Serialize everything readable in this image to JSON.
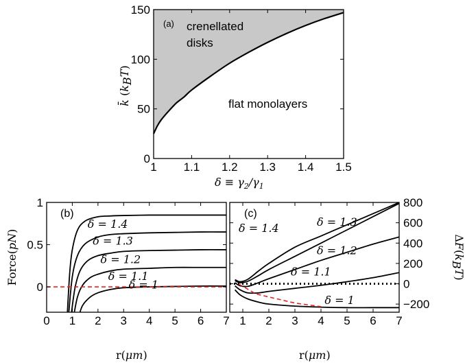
{
  "chart_data": [
    {
      "id": "a",
      "type": "line",
      "panel_label": "(a)",
      "xlabel": "δ ≡ γ₂/γ₁",
      "ylabel": "k̄ (k_B T)",
      "xlim": [
        1,
        1.5
      ],
      "ylim": [
        0,
        150
      ],
      "xticks": [
        "1",
        "1.1",
        "1.2",
        "1.3",
        "1.4",
        "1.5"
      ],
      "yticks": [
        "0",
        "50",
        "100",
        "150"
      ],
      "grid": false,
      "series": [
        {
          "x": [
            1.0,
            1.01,
            1.02,
            1.04,
            1.06,
            1.08,
            1.1,
            1.15,
            1.2,
            1.25,
            1.3,
            1.35,
            1.4,
            1.45,
            1.5
          ],
          "y": [
            25,
            33,
            39,
            48,
            56,
            62,
            69,
            83,
            96,
            107,
            117,
            126,
            134,
            141,
            147
          ]
        }
      ],
      "shaded_region": "above curve",
      "annotations": [
        {
          "text": "crenellated",
          "x": 1.06,
          "y": 127
        },
        {
          "text": "disks",
          "x": 1.06,
          "y": 111
        },
        {
          "text": "flat monolayers",
          "x": 1.24,
          "y": 53
        }
      ]
    },
    {
      "id": "b",
      "type": "line",
      "panel_label": "(b)",
      "xlabel": "r(μm)",
      "ylabel": "Force(pN)",
      "xlim": [
        0,
        7
      ],
      "ylim": [
        -0.3,
        1
      ],
      "xticks": [
        "0",
        "1",
        "2",
        "3",
        "4",
        "5",
        "6",
        "7"
      ],
      "yticks": [
        "0",
        "0.5",
        "1"
      ],
      "grid": false,
      "series": [
        {
          "label": "δ = 1.4",
          "x": [
            0.8,
            0.9,
            1.0,
            1.2,
            1.5,
            2.0,
            2.5,
            3.0,
            4.0,
            5.0,
            6.0,
            7.0
          ],
          "y": [
            -0.35,
            0.17,
            0.44,
            0.67,
            0.78,
            0.83,
            0.84,
            0.845,
            0.85,
            0.85,
            0.85,
            0.85
          ]
        },
        {
          "label": "δ = 1.3",
          "x": [
            0.85,
            1.0,
            1.2,
            1.5,
            2.0,
            2.5,
            3.0,
            4.0,
            5.0,
            6.0,
            7.0
          ],
          "y": [
            -0.35,
            0.12,
            0.37,
            0.51,
            0.59,
            0.62,
            0.63,
            0.64,
            0.645,
            0.65,
            0.65
          ]
        },
        {
          "label": "δ = 1.2",
          "x": [
            0.95,
            1.1,
            1.3,
            1.6,
            2.0,
            2.5,
            3.0,
            4.0,
            5.0,
            6.0,
            7.0
          ],
          "y": [
            -0.35,
            -0.02,
            0.19,
            0.31,
            0.37,
            0.4,
            0.42,
            0.43,
            0.435,
            0.44,
            0.44
          ]
        },
        {
          "label": "δ = 1.1",
          "x": [
            1.05,
            1.2,
            1.4,
            1.7,
            2.0,
            2.5,
            3.0,
            4.0,
            5.0,
            6.0,
            7.0
          ],
          "y": [
            -0.35,
            -0.12,
            0.02,
            0.11,
            0.15,
            0.19,
            0.21,
            0.22,
            0.23,
            0.23,
            0.23
          ]
        },
        {
          "label": "δ = 1",
          "x": [
            1.25,
            1.4,
            1.7,
            2.0,
            2.5,
            3.0,
            4.0,
            5.0,
            6.0,
            7.0
          ],
          "y": [
            -0.35,
            -0.22,
            -0.12,
            -0.07,
            -0.03,
            -0.01,
            0.0,
            0.005,
            0.01,
            0.01
          ]
        }
      ],
      "reference_line": {
        "y": 0,
        "style": "dashed",
        "color": "#e8231e"
      },
      "label_positions": [
        {
          "text": "δ = 1.4",
          "x": 2.8,
          "y": 0.75
        },
        {
          "text": "δ = 1.3",
          "x": 3.0,
          "y": 0.55
        },
        {
          "text": "δ = 1.2",
          "x": 3.3,
          "y": 0.33
        },
        {
          "text": "δ = 1.1",
          "x": 3.6,
          "y": 0.13
        },
        {
          "text": "δ = 1",
          "x": 4.4,
          "y": 0.03
        }
      ]
    },
    {
      "id": "c",
      "type": "line",
      "panel_label": "(c)",
      "xlabel": "r(μm)",
      "ylabel": "ΔF(k_B T)",
      "xlim": [
        0.5,
        7
      ],
      "ylim": [
        -280,
        800
      ],
      "xticks": [
        "1",
        "2",
        "3",
        "4",
        "5",
        "6",
        "7"
      ],
      "yticks": [
        "−200",
        "0",
        "200",
        "400",
        "600",
        "800"
      ],
      "y_axis_side": "right",
      "grid": false,
      "series": [
        {
          "label": "δ = 1.4",
          "x": [
            0.7,
            0.9,
            1.2,
            1.6,
            2.0,
            3.0,
            4.0,
            5.0,
            6.0,
            7.0
          ],
          "y": [
            40,
            20,
            45,
            125,
            200,
            360,
            470,
            580,
            690,
            800
          ]
        },
        {
          "label": "δ = 1.3",
          "x": [
            0.7,
            0.9,
            1.2,
            1.6,
            2.0,
            3.0,
            4.0,
            5.0,
            6.0,
            7.0
          ],
          "y": [
            30,
            10,
            25,
            80,
            140,
            270,
            400,
            530,
            660,
            790
          ]
        },
        {
          "label": "δ = 1.2",
          "x": [
            0.7,
            0.9,
            1.2,
            1.6,
            2.0,
            3.0,
            4.0,
            5.0,
            6.0,
            7.0
          ],
          "y": [
            10,
            -20,
            -25,
            10,
            50,
            140,
            230,
            310,
            390,
            460
          ]
        },
        {
          "label": "δ = 1.1",
          "x": [
            0.7,
            0.9,
            1.2,
            1.6,
            2.0,
            3.0,
            4.0,
            5.0,
            6.0,
            7.0
          ],
          "y": [
            -20,
            -60,
            -90,
            -90,
            -75,
            -45,
            -15,
            20,
            60,
            110
          ]
        },
        {
          "label": "δ = 1",
          "x": [
            0.7,
            0.9,
            1.2,
            1.6,
            2.0,
            3.0,
            4.0,
            5.0,
            6.0,
            7.0
          ],
          "y": [
            -60,
            -110,
            -150,
            -180,
            -200,
            -220,
            -230,
            -235,
            -235,
            -235
          ]
        }
      ],
      "reference_line": {
        "y": 0,
        "style": "dotted"
      },
      "minima_path": {
        "x": [
          0.85,
          1.1,
          1.5,
          2.0,
          3.0,
          4.0
        ],
        "y": [
          -5,
          -40,
          -100,
          -130,
          -190,
          -225
        ],
        "style": "dashed",
        "color": "#e8231e"
      },
      "label_positions": [
        {
          "text": "δ = 1.4",
          "x": 1.5,
          "y": 550
        },
        {
          "text": "δ = 1.3",
          "x": 4.5,
          "y": 610
        },
        {
          "text": "δ = 1.2",
          "x": 4.5,
          "y": 330
        },
        {
          "text": "δ = 1.1",
          "x": 3.5,
          "y": 120
        },
        {
          "text": "δ = 1",
          "x": 4.8,
          "y": -160
        }
      ]
    }
  ],
  "colors": {
    "line": "#000000",
    "shade": "#c8c8c8",
    "dashed": "#e8231e"
  }
}
